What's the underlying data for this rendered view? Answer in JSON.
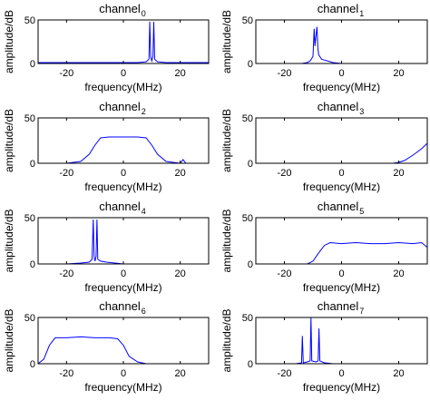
{
  "figure": {
    "xlabel": "frequency(MHz)",
    "ylabel": "amplitude/dB",
    "xlim": [
      -30,
      30
    ],
    "ylim": [
      0,
      50
    ],
    "xticks": [
      -20,
      0,
      20
    ],
    "yticks": [
      0,
      50
    ],
    "line_color": "#0000ff",
    "axis_color": "#000000"
  },
  "chart_data": [
    {
      "type": "line",
      "title": "channel",
      "title_subscript": "0",
      "xlabel": "frequency(MHz)",
      "ylabel": "amplitude/dB",
      "xlim": [
        -30,
        30
      ],
      "ylim": [
        0,
        50
      ],
      "x": [
        -30,
        -20,
        -10,
        0,
        5,
        8,
        9,
        9.3,
        9.6,
        10,
        10.4,
        10.7,
        11,
        12,
        15,
        20,
        30
      ],
      "y": [
        1,
        1,
        1,
        1,
        1,
        2,
        5,
        48,
        8,
        3,
        8,
        48,
        5,
        2,
        1,
        1,
        1
      ]
    },
    {
      "type": "line",
      "title": "channel",
      "title_subscript": "1",
      "xlabel": "frequency(MHz)",
      "ylabel": "amplitude/dB",
      "xlim": [
        -30,
        30
      ],
      "ylim": [
        0,
        50
      ],
      "x": [
        -30,
        -20,
        -14,
        -12,
        -11,
        -10,
        -9.6,
        -9.3,
        -9,
        -8.6,
        -8.3,
        -8,
        -7,
        -6,
        -5,
        -3,
        0,
        30
      ],
      "y": [
        0,
        0,
        0,
        1,
        3,
        8,
        40,
        20,
        30,
        42,
        18,
        10,
        5,
        4,
        3,
        1,
        0,
        0
      ]
    },
    {
      "type": "line",
      "title": "channel",
      "title_subscript": "2",
      "xlabel": "frequency(MHz)",
      "ylabel": "amplitude/dB",
      "xlim": [
        -30,
        30
      ],
      "ylim": [
        0,
        50
      ],
      "x": [
        -30,
        -20,
        -15,
        -12,
        -10,
        -8,
        -5,
        0,
        5,
        8,
        10,
        12,
        15,
        20,
        21,
        22,
        30
      ],
      "y": [
        0,
        0,
        2,
        10,
        20,
        28,
        29,
        29,
        29,
        28,
        20,
        10,
        2,
        0,
        4,
        0,
        0
      ]
    },
    {
      "type": "line",
      "title": "channel",
      "title_subscript": "3",
      "xlabel": "frequency(MHz)",
      "ylabel": "amplitude/dB",
      "xlim": [
        -30,
        30
      ],
      "ylim": [
        0,
        50
      ],
      "x": [
        -30,
        -20,
        0,
        10,
        18,
        20,
        22,
        25,
        28,
        30
      ],
      "y": [
        0,
        0,
        0,
        0,
        0,
        1,
        3,
        9,
        16,
        22
      ]
    },
    {
      "type": "line",
      "title": "channel",
      "title_subscript": "4",
      "xlabel": "frequency(MHz)",
      "ylabel": "amplitude/dB",
      "xlim": [
        -30,
        30
      ],
      "ylim": [
        0,
        50
      ],
      "x": [
        -30,
        -20,
        -15,
        -12,
        -11,
        -10.6,
        -10.3,
        -10,
        -9.6,
        -9.3,
        -9,
        -8,
        -6,
        -3,
        0,
        30
      ],
      "y": [
        0,
        0,
        1,
        2,
        5,
        48,
        8,
        3,
        8,
        48,
        5,
        3,
        2,
        1,
        0,
        0
      ]
    },
    {
      "type": "line",
      "title": "channel",
      "title_subscript": "5",
      "xlabel": "frequency(MHz)",
      "ylabel": "amplitude/dB",
      "xlim": [
        -30,
        30
      ],
      "ylim": [
        0,
        50
      ],
      "x": [
        -30,
        -20,
        -12,
        -10,
        -8,
        -6,
        -4,
        0,
        5,
        10,
        15,
        20,
        25,
        28,
        30
      ],
      "y": [
        0,
        0,
        0,
        3,
        12,
        20,
        23,
        22,
        23,
        22,
        22,
        23,
        22,
        23,
        18
      ]
    },
    {
      "type": "line",
      "title": "channel",
      "title_subscript": "6",
      "xlabel": "frequency(MHz)",
      "ylabel": "amplitude/dB",
      "xlim": [
        -30,
        30
      ],
      "ylim": [
        0,
        50
      ],
      "x": [
        -30,
        -28,
        -26,
        -24,
        -20,
        -15,
        -10,
        -5,
        -2,
        0,
        2,
        5,
        8,
        10,
        30
      ],
      "y": [
        0,
        5,
        20,
        28,
        28,
        29,
        28,
        28,
        27,
        20,
        8,
        2,
        0,
        0,
        0
      ]
    },
    {
      "type": "line",
      "title": "channel",
      "title_subscript": "7",
      "xlabel": "frequency(MHz)",
      "ylabel": "amplitude/dB",
      "xlim": [
        -30,
        30
      ],
      "ylim": [
        0,
        50
      ],
      "x": [
        -30,
        -16,
        -14,
        -13.7,
        -13.4,
        -12,
        -11,
        -10.7,
        -10.4,
        -9,
        -8.2,
        -7.9,
        -7.6,
        -6,
        -3,
        0,
        30
      ],
      "y": [
        0,
        0,
        1,
        30,
        1,
        2,
        3,
        50,
        3,
        2,
        3,
        38,
        3,
        1,
        0,
        0,
        0
      ]
    }
  ]
}
